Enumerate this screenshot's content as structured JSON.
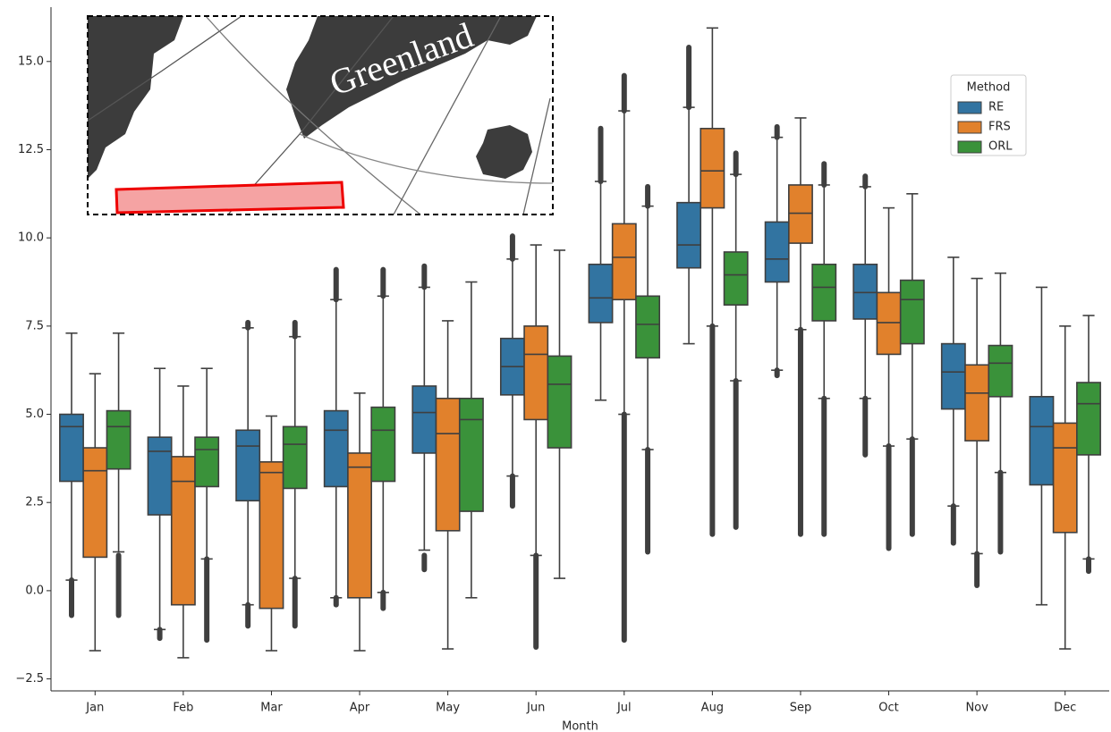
{
  "inset": {
    "label": "Greenland"
  },
  "chart_data": {
    "type": "box",
    "x_label": "Month",
    "legend_title": "Method",
    "legend_loc": "upper right",
    "categories": [
      "Jan",
      "Feb",
      "Mar",
      "Apr",
      "May",
      "Jun",
      "Jul",
      "Aug",
      "Sep",
      "Oct",
      "Nov",
      "Dec"
    ],
    "ylim": [
      -2.84,
      16.54
    ],
    "yticks": [
      {
        "value": -2.5,
        "label": "−2.5"
      },
      {
        "value": 0,
        "label": "0.0"
      },
      {
        "value": 2.5,
        "label": "2.5"
      },
      {
        "value": 5,
        "label": "5.0"
      },
      {
        "value": 7.5,
        "label": "7.5"
      },
      {
        "value": 10,
        "label": "10.0"
      },
      {
        "value": 12.5,
        "label": "12.5"
      },
      {
        "value": 15,
        "label": "15.0"
      }
    ],
    "series": [
      {
        "name": "RE",
        "color": "#3274a1",
        "values": [
          {
            "whislo": 0.3,
            "q1": 3.1,
            "med": 4.65,
            "q3": 5.0,
            "whishi": 7.3,
            "fliers_low": [
              -0.7,
              0.3
            ],
            "fliers_high": null
          },
          {
            "whislo": -1.1,
            "q1": 2.15,
            "med": 3.95,
            "q3": 4.35,
            "whishi": 6.3,
            "fliers_low": [
              -1.35,
              -1.1
            ],
            "fliers_high": null
          },
          {
            "whislo": -0.4,
            "q1": 2.55,
            "med": 4.1,
            "q3": 4.55,
            "whishi": 7.45,
            "fliers_low": [
              -1.0,
              -0.4
            ],
            "fliers_high": [
              7.45,
              7.6
            ]
          },
          {
            "whislo": -0.2,
            "q1": 2.95,
            "med": 4.55,
            "q3": 5.1,
            "whishi": 8.25,
            "fliers_low": [
              -0.4,
              -0.2
            ],
            "fliers_high": [
              8.25,
              9.1
            ]
          },
          {
            "whislo": 1.15,
            "q1": 3.9,
            "med": 5.05,
            "q3": 5.8,
            "whishi": 8.6,
            "fliers_low": [
              0.6,
              1.0
            ],
            "fliers_high": [
              8.6,
              9.2
            ]
          },
          {
            "whislo": 3.25,
            "q1": 5.55,
            "med": 6.35,
            "q3": 7.15,
            "whishi": 9.4,
            "fliers_low": [
              2.4,
              3.25
            ],
            "fliers_high": [
              9.4,
              10.05
            ]
          },
          {
            "whislo": 5.4,
            "q1": 7.6,
            "med": 8.3,
            "q3": 9.25,
            "whishi": 11.6,
            "fliers_low": null,
            "fliers_high": [
              11.6,
              13.1
            ]
          },
          {
            "whislo": 7.0,
            "q1": 9.15,
            "med": 9.8,
            "q3": 11.0,
            "whishi": 13.7,
            "fliers_low": null,
            "fliers_high": [
              13.7,
              15.4
            ]
          },
          {
            "whislo": 6.25,
            "q1": 8.75,
            "med": 9.4,
            "q3": 10.45,
            "whishi": 12.85,
            "fliers_low": [
              6.1,
              6.25
            ],
            "fliers_high": [
              12.85,
              13.15
            ]
          },
          {
            "whislo": 5.45,
            "q1": 7.7,
            "med": 8.45,
            "q3": 9.25,
            "whishi": 11.45,
            "fliers_low": [
              3.85,
              5.45
            ],
            "fliers_high": [
              11.45,
              11.75
            ]
          },
          {
            "whislo": 2.4,
            "q1": 5.15,
            "med": 6.2,
            "q3": 7.0,
            "whishi": 9.45,
            "fliers_low": [
              1.35,
              2.4
            ],
            "fliers_high": null
          },
          {
            "whislo": -0.4,
            "q1": 3.0,
            "med": 4.65,
            "q3": 5.5,
            "whishi": 8.6,
            "fliers_low": null,
            "fliers_high": null
          }
        ]
      },
      {
        "name": "FRS",
        "color": "#e1812c",
        "values": [
          {
            "whislo": -1.7,
            "q1": 0.95,
            "med": 3.4,
            "q3": 4.05,
            "whishi": 6.15,
            "fliers_low": null,
            "fliers_high": null
          },
          {
            "whislo": -1.9,
            "q1": -0.4,
            "med": 3.1,
            "q3": 3.8,
            "whishi": 5.8,
            "fliers_low": null,
            "fliers_high": null
          },
          {
            "whislo": -1.7,
            "q1": -0.5,
            "med": 3.35,
            "q3": 3.65,
            "whishi": 4.95,
            "fliers_low": null,
            "fliers_high": null
          },
          {
            "whislo": -1.7,
            "q1": -0.2,
            "med": 3.5,
            "q3": 3.9,
            "whishi": 5.6,
            "fliers_low": null,
            "fliers_high": null
          },
          {
            "whislo": -1.65,
            "q1": 1.7,
            "med": 4.45,
            "q3": 5.45,
            "whishi": 7.65,
            "fliers_low": null,
            "fliers_high": null
          },
          {
            "whislo": 1.0,
            "q1": 4.85,
            "med": 6.7,
            "q3": 7.5,
            "whishi": 9.8,
            "fliers_low": [
              -1.6,
              1.0
            ],
            "fliers_high": null
          },
          {
            "whislo": 5.0,
            "q1": 8.25,
            "med": 9.45,
            "q3": 10.4,
            "whishi": 13.6,
            "fliers_low": [
              -1.4,
              5.0
            ],
            "fliers_high": [
              13.6,
              14.6
            ]
          },
          {
            "whislo": 7.5,
            "q1": 10.85,
            "med": 11.9,
            "q3": 13.1,
            "whishi": 15.95,
            "fliers_low": [
              1.6,
              7.5
            ],
            "fliers_high": null
          },
          {
            "whislo": 7.4,
            "q1": 9.85,
            "med": 10.7,
            "q3": 11.5,
            "whishi": 13.4,
            "fliers_low": [
              1.6,
              7.4
            ],
            "fliers_high": null
          },
          {
            "whislo": 4.1,
            "q1": 6.7,
            "med": 7.6,
            "q3": 8.45,
            "whishi": 10.85,
            "fliers_low": [
              1.2,
              4.1
            ],
            "fliers_high": null
          },
          {
            "whislo": 1.05,
            "q1": 4.25,
            "med": 5.6,
            "q3": 6.4,
            "whishi": 8.85,
            "fliers_low": [
              0.15,
              1.05
            ],
            "fliers_high": null
          },
          {
            "whislo": -1.65,
            "q1": 1.65,
            "med": 4.05,
            "q3": 4.75,
            "whishi": 7.5,
            "fliers_low": null,
            "fliers_high": null
          }
        ]
      },
      {
        "name": "ORL",
        "color": "#3a923a",
        "values": [
          {
            "whislo": 1.1,
            "q1": 3.45,
            "med": 4.65,
            "q3": 5.1,
            "whishi": 7.3,
            "fliers_low": [
              -0.7,
              1.0
            ],
            "fliers_high": null
          },
          {
            "whislo": 0.9,
            "q1": 2.95,
            "med": 4.0,
            "q3": 4.35,
            "whishi": 6.3,
            "fliers_low": [
              -1.4,
              0.9
            ],
            "fliers_high": null
          },
          {
            "whislo": 0.35,
            "q1": 2.9,
            "med": 4.15,
            "q3": 4.65,
            "whishi": 7.2,
            "fliers_low": [
              -1.0,
              0.35
            ],
            "fliers_high": [
              7.2,
              7.6
            ]
          },
          {
            "whislo": -0.05,
            "q1": 3.1,
            "med": 4.55,
            "q3": 5.2,
            "whishi": 8.35,
            "fliers_low": [
              -0.5,
              -0.05
            ],
            "fliers_high": [
              8.35,
              9.1
            ]
          },
          {
            "whislo": -0.2,
            "q1": 2.25,
            "med": 4.85,
            "q3": 5.45,
            "whishi": 8.75,
            "fliers_low": null,
            "fliers_high": null
          },
          {
            "whislo": 0.35,
            "q1": 4.05,
            "med": 5.85,
            "q3": 6.65,
            "whishi": 9.65,
            "fliers_low": null,
            "fliers_high": null
          },
          {
            "whislo": 4.0,
            "q1": 6.6,
            "med": 7.55,
            "q3": 8.35,
            "whishi": 10.9,
            "fliers_low": [
              1.1,
              4.0
            ],
            "fliers_high": [
              10.9,
              11.45
            ]
          },
          {
            "whislo": 5.95,
            "q1": 8.1,
            "med": 8.95,
            "q3": 9.6,
            "whishi": 11.8,
            "fliers_low": [
              1.8,
              5.95
            ],
            "fliers_high": [
              11.8,
              12.4
            ]
          },
          {
            "whislo": 5.45,
            "q1": 7.65,
            "med": 8.6,
            "q3": 9.25,
            "whishi": 11.5,
            "fliers_low": [
              1.6,
              5.45
            ],
            "fliers_high": [
              11.5,
              12.1
            ]
          },
          {
            "whislo": 4.3,
            "q1": 7.0,
            "med": 8.25,
            "q3": 8.8,
            "whishi": 11.25,
            "fliers_low": [
              1.6,
              4.3
            ],
            "fliers_high": null
          },
          {
            "whislo": 3.35,
            "q1": 5.5,
            "med": 6.45,
            "q3": 6.95,
            "whishi": 9.0,
            "fliers_low": [
              1.1,
              3.35
            ],
            "fliers_high": null
          },
          {
            "whislo": 0.9,
            "q1": 3.85,
            "med": 5.3,
            "q3": 5.9,
            "whishi": 7.8,
            "fliers_low": [
              0.55,
              0.9
            ],
            "fliers_high": null
          }
        ]
      }
    ]
  }
}
